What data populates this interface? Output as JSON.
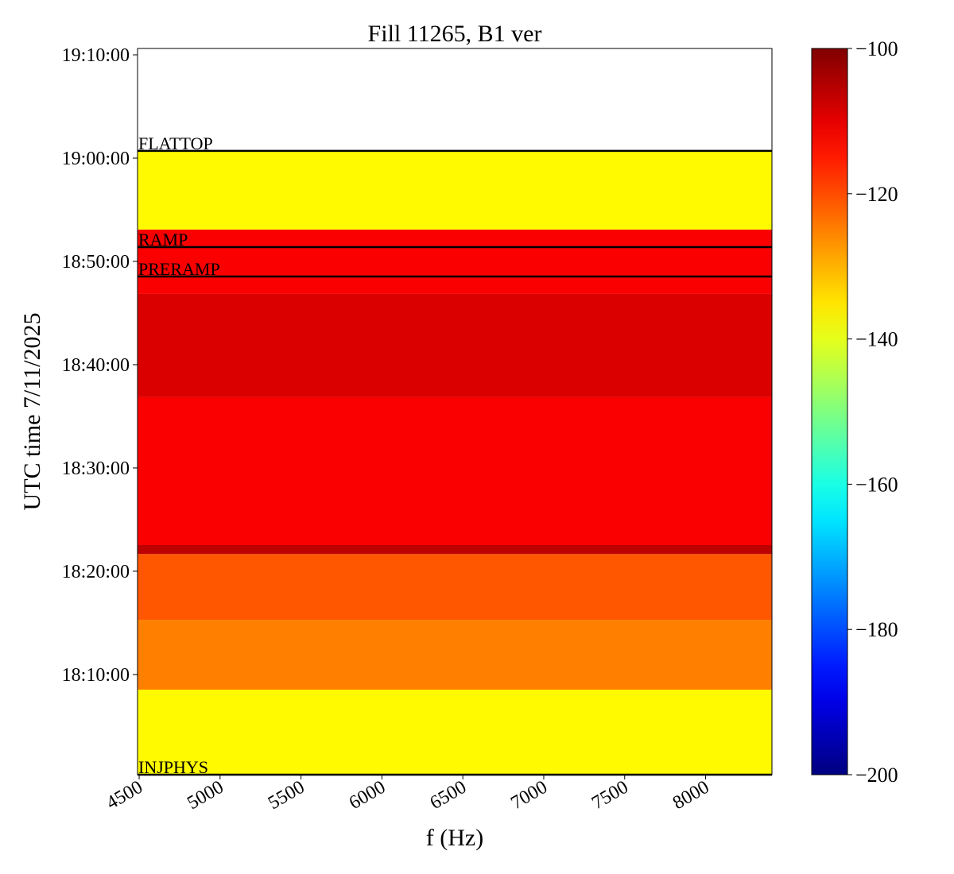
{
  "chart_data": {
    "type": "heatmap",
    "title": "Fill 11265, B1 ver",
    "xlabel": "f (Hz)",
    "ylabel": "UTC time 7/11/2025",
    "colormap": "jet",
    "xlim": [
      4490,
      8410
    ],
    "xticks": [
      4500,
      5000,
      5500,
      6000,
      6500,
      7000,
      7500,
      8000
    ],
    "ylim": [
      64818,
      69037
    ],
    "yticks": [
      {
        "value": 65400,
        "label": "18:10:00"
      },
      {
        "value": 66000,
        "label": "18:20:00"
      },
      {
        "value": 66600,
        "label": "18:30:00"
      },
      {
        "value": 67200,
        "label": "18:40:00"
      },
      {
        "value": 67800,
        "label": "18:50:00"
      },
      {
        "value": 68400,
        "label": "19:00:00"
      },
      {
        "value": 69000,
        "label": "19:10:00"
      }
    ],
    "clim": [
      -200,
      -100
    ],
    "cticks": [
      {
        "value": -200,
        "label": "−200"
      },
      {
        "value": -180,
        "label": "−180"
      },
      {
        "value": -160,
        "label": "−160"
      },
      {
        "value": -140,
        "label": "−140"
      },
      {
        "value": -120,
        "label": "−120"
      },
      {
        "value": -100,
        "label": "−100"
      }
    ],
    "bands": [
      {
        "start": 64818,
        "end": 65312,
        "value": -137
      },
      {
        "start": 65312,
        "end": 65718,
        "value": -125
      },
      {
        "start": 65718,
        "end": 66100,
        "value": -121
      },
      {
        "start": 66100,
        "end": 66152,
        "value": -106
      },
      {
        "start": 66152,
        "end": 67011,
        "value": -112
      },
      {
        "start": 67011,
        "end": 67611,
        "value": -109
      },
      {
        "start": 67611,
        "end": 67985,
        "value": -112
      },
      {
        "start": 67985,
        "end": 68442,
        "value": -137
      }
    ],
    "events": [
      {
        "label": "INJPHYS",
        "time": 64818
      },
      {
        "label": "PRERAMP",
        "time": 67712
      },
      {
        "label": "RAMP",
        "time": 67883
      },
      {
        "label": "FLATTOP",
        "time": 68442
      }
    ]
  }
}
